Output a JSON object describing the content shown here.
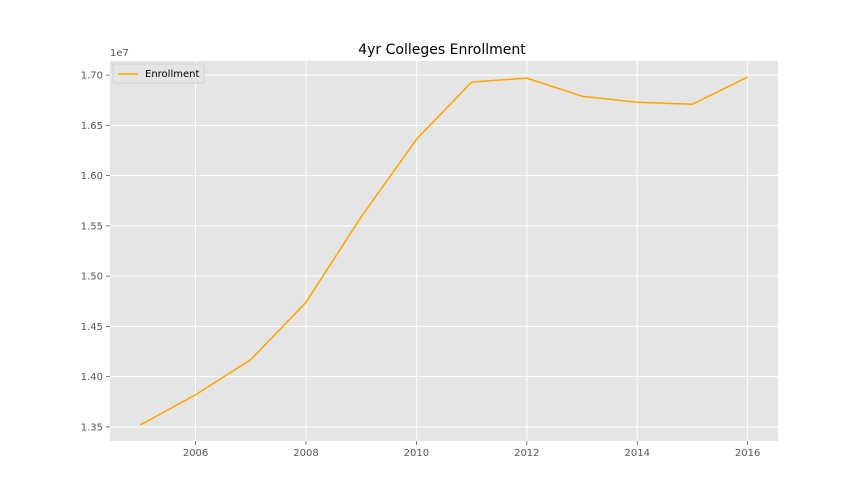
{
  "chart_data": {
    "type": "line",
    "title": "4yr Colleges Enrollment",
    "xlabel": "",
    "ylabel": "",
    "y_offset_label": "1e7",
    "x": [
      2005,
      2006,
      2007,
      2008,
      2009,
      2010,
      2011,
      2012,
      2013,
      2014,
      2015,
      2016
    ],
    "series": [
      {
        "name": "Enrollment",
        "color": "#FFA500",
        "values": [
          1.352,
          1.382,
          1.417,
          1.474,
          1.559,
          1.636,
          1.693,
          1.697,
          1.679,
          1.673,
          1.671,
          1.698
        ]
      }
    ],
    "xlim": [
      2004.45,
      2016.55
    ],
    "ylim": [
      1.336,
      1.714
    ],
    "x_ticks": [
      2006,
      2008,
      2010,
      2012,
      2014,
      2016
    ],
    "y_ticks": [
      1.35,
      1.4,
      1.45,
      1.5,
      1.55,
      1.6,
      1.65,
      1.7
    ],
    "y_tick_labels": [
      "1.35",
      "1.40",
      "1.45",
      "1.50",
      "1.55",
      "1.60",
      "1.65",
      "1.70"
    ],
    "grid": true,
    "legend_position": "top-left",
    "colors": {
      "background": "#E5E5E5",
      "grid": "#FFFFFF",
      "tick_label": "#555555"
    }
  }
}
